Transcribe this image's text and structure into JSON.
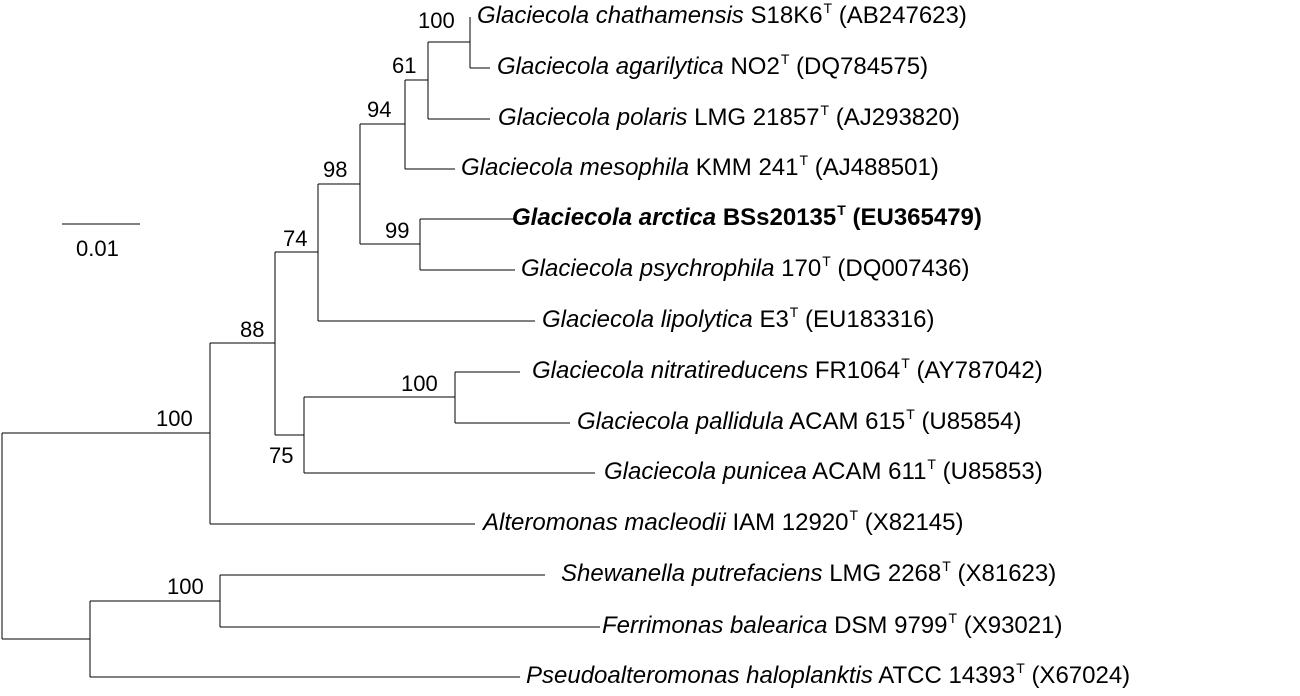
{
  "scale": {
    "label": "0.01"
  },
  "taxa": [
    {
      "id": "chathamensis",
      "genus": "Glaciecola chathamensis",
      "strain": "S18K6",
      "sup": "T",
      "acc": "(AB247623)",
      "bold": false
    },
    {
      "id": "agarilytica",
      "genus": "Glaciecola agarilytica",
      "strain": "NO2",
      "sup": "T",
      "acc": "(DQ784575)",
      "bold": false
    },
    {
      "id": "polaris",
      "genus": "Glaciecola polaris",
      "strain": "LMG 21857",
      "sup": "T",
      "acc": "(AJ293820)",
      "bold": false
    },
    {
      "id": "mesophila",
      "genus": "Glaciecola mesophila",
      "strain": "KMM 241",
      "sup": "T",
      "acc": "(AJ488501)",
      "bold": false
    },
    {
      "id": "arctica",
      "genus": "Glaciecola arctica",
      "strain": "BSs20135",
      "sup": "T",
      "acc": "(EU365479)",
      "bold": true
    },
    {
      "id": "psychrophila",
      "genus": "Glaciecola psychrophila",
      "strain": "170",
      "sup": "T",
      "acc": "(DQ007436)",
      "bold": false
    },
    {
      "id": "lipolytica",
      "genus": "Glaciecola lipolytica",
      "strain": "E3",
      "sup": "T",
      "acc": "(EU183316)",
      "bold": false
    },
    {
      "id": "nitratireducens",
      "genus": "Glaciecola nitratireducens",
      "strain": "FR1064",
      "sup": "T",
      "acc": "(AY787042)",
      "bold": false
    },
    {
      "id": "pallidula",
      "genus": "Glaciecola pallidula",
      "strain": "ACAM 615",
      "sup": "T",
      "acc": "(U85854)",
      "bold": false
    },
    {
      "id": "punicea",
      "genus": "Glaciecola punicea",
      "strain": "ACAM 611",
      "sup": "T",
      "acc": "(U85853)",
      "bold": false
    },
    {
      "id": "macleodii",
      "genus": "Alteromonas macleodii",
      "strain": "IAM 12920",
      "sup": "T",
      "acc": "(X82145)",
      "bold": false
    },
    {
      "id": "putrefaciens",
      "genus": "Shewanella putrefaciens",
      "strain": "LMG 2268",
      "sup": "T",
      "acc": "(X81623)",
      "bold": false
    },
    {
      "id": "balearica",
      "genus": "Ferrimonas balearica",
      "strain": "DSM 9799",
      "sup": "T",
      "acc": "(X93021)",
      "bold": false
    },
    {
      "id": "haloplanktis",
      "genus": "Pseudoalteromonas haloplanktis",
      "strain": "ATCC 14393",
      "sup": "T",
      "acc": "(X67024)",
      "bold": false
    }
  ],
  "bootstrap": [
    {
      "id": "n1",
      "value": "100"
    },
    {
      "id": "n2",
      "value": "61"
    },
    {
      "id": "n3",
      "value": "94"
    },
    {
      "id": "n4",
      "value": "98"
    },
    {
      "id": "n5",
      "value": "99"
    },
    {
      "id": "n6",
      "value": "74"
    },
    {
      "id": "n7",
      "value": "88"
    },
    {
      "id": "n8",
      "value": "100"
    },
    {
      "id": "n9",
      "value": "75"
    },
    {
      "id": "n10",
      "value": "100"
    },
    {
      "id": "n11",
      "value": "100"
    }
  ]
}
